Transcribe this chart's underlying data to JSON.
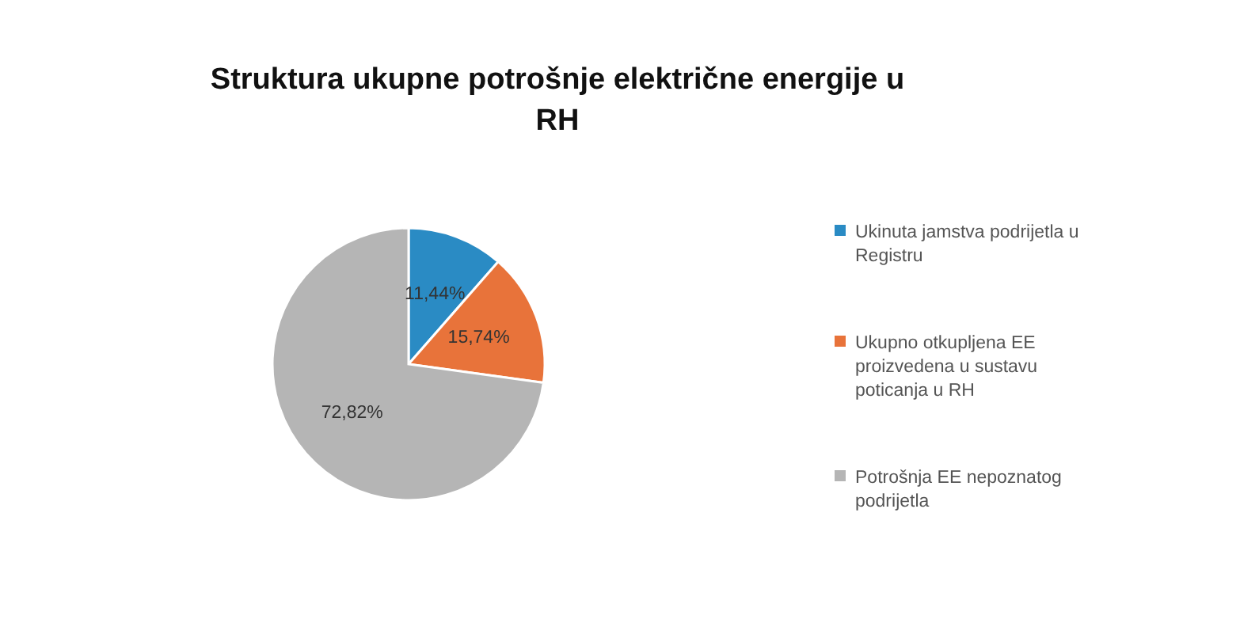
{
  "chart_data": {
    "type": "pie",
    "title": "Struktura ukupne potrošnje električne energije u RH",
    "categories": [
      "Ukinuta jamstva podrijetla u Registru",
      "Ukupno otkupljena EE proizvedena u sustavu poticanja u RH",
      "Potrošnja EE nepoznatog podrijetla"
    ],
    "values": [
      11.44,
      15.74,
      72.82
    ],
    "colors": [
      "#2a8bc4",
      "#e8733a",
      "#b5b5b5"
    ],
    "value_labels": [
      "11,44%",
      "15,74%",
      "72,82%"
    ],
    "legend": "right"
  }
}
